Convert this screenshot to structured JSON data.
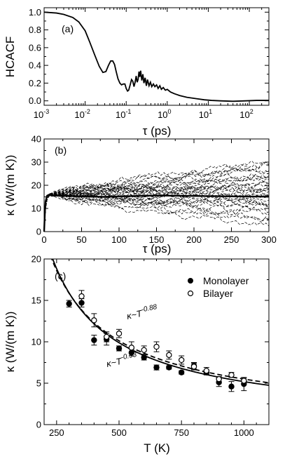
{
  "chart_data": [
    {
      "type": "line",
      "panel_label": "(a)",
      "ylabel": "HCACF",
      "xlabel": "τ (ps)",
      "xscale": "log",
      "xlim": [
        0.001,
        300
      ],
      "ylim": [
        -0.05,
        1.05
      ],
      "yticks": [
        0.0,
        0.2,
        0.4,
        0.6,
        0.8,
        1.0
      ],
      "ytick_labels": [
        "0.0",
        "0.2",
        "0.4",
        "0.6",
        "0.8",
        "1.0"
      ],
      "xticks": [
        0.001,
        0.01,
        0.1,
        1,
        10,
        100
      ],
      "xtick_base": "10",
      "xtick_exponents": [
        "-3",
        "-2",
        "-1",
        "0",
        "1",
        "2"
      ],
      "grid": false,
      "series": [
        {
          "x": [
            0.001,
            0.002,
            0.003,
            0.005,
            0.007,
            0.01,
            0.013,
            0.017,
            0.022,
            0.027,
            0.032,
            0.037,
            0.042,
            0.047,
            0.052,
            0.057,
            0.063,
            0.07,
            0.077,
            0.085,
            0.093,
            0.1,
            0.108,
            0.115,
            0.125,
            0.135,
            0.145,
            0.155,
            0.165,
            0.175,
            0.185,
            0.195,
            0.205,
            0.215,
            0.225,
            0.24,
            0.255,
            0.27,
            0.29,
            0.31,
            0.33,
            0.36,
            0.39,
            0.42,
            0.46,
            0.5,
            0.55,
            0.6,
            0.66,
            0.72,
            0.8,
            0.9,
            1.0,
            1.2,
            1.5,
            2,
            3,
            5,
            8,
            12,
            20,
            40,
            80,
            150,
            300
          ],
          "y": [
            1.0,
            0.99,
            0.975,
            0.94,
            0.89,
            0.79,
            0.66,
            0.52,
            0.39,
            0.32,
            0.33,
            0.4,
            0.45,
            0.45,
            0.41,
            0.33,
            0.25,
            0.2,
            0.18,
            0.19,
            0.19,
            0.14,
            0.11,
            0.12,
            0.18,
            0.24,
            0.22,
            0.16,
            0.21,
            0.28,
            0.21,
            0.24,
            0.33,
            0.27,
            0.34,
            0.23,
            0.3,
            0.2,
            0.26,
            0.17,
            0.24,
            0.17,
            0.21,
            0.16,
            0.19,
            0.16,
            0.18,
            0.14,
            0.17,
            0.13,
            0.15,
            0.12,
            0.13,
            0.1,
            0.08,
            0.06,
            0.04,
            0.025,
            0.012,
            0.005,
            0.0,
            -0.005,
            0.0,
            0.005,
            0.005
          ]
        }
      ]
    },
    {
      "type": "line",
      "panel_label": "(b)",
      "ylabel": "κ (W/(m K))",
      "xlabel": "τ (ps)",
      "xlim": [
        0,
        300
      ],
      "ylim": [
        0,
        40
      ],
      "xticks": [
        0,
        50,
        100,
        150,
        200,
        250,
        300
      ],
      "xtick_labels": [
        "0",
        "50",
        "100",
        "150",
        "200",
        "250",
        "300"
      ],
      "yticks": [
        0,
        10,
        20,
        30,
        40
      ],
      "ytick_labels": [
        "0",
        "10",
        "20",
        "30",
        "40"
      ],
      "grid": false,
      "dashed_runs_endpoints": [
        28,
        22,
        18,
        12,
        26,
        9,
        16,
        20,
        6,
        24,
        14,
        30,
        11,
        19,
        3,
        17,
        25,
        8,
        21,
        13,
        15,
        27,
        10,
        23,
        5,
        29,
        18,
        12,
        16,
        20
      ],
      "average": {
        "x": [
          0,
          1,
          2,
          4,
          7,
          10,
          20,
          40,
          60,
          80,
          100,
          150,
          200,
          250,
          300
        ],
        "y": [
          0,
          8,
          13,
          15.5,
          16,
          15.5,
          15.5,
          15.3,
          15.1,
          15,
          15.2,
          15.6,
          15.4,
          15.2,
          15.1
        ]
      }
    },
    {
      "type": "scatter",
      "panel_label": "(c)",
      "ylabel": "κ (W/(m K))",
      "xlabel": "T (K)",
      "xlim": [
        200,
        1100
      ],
      "ylim": [
        0,
        20
      ],
      "xticks": [
        250,
        500,
        750,
        1000
      ],
      "xtick_labels": [
        "250",
        "500",
        "750",
        "1000"
      ],
      "yticks": [
        0,
        5,
        10,
        15,
        20
      ],
      "ytick_labels": [
        "0",
        "5",
        "10",
        "15",
        "20"
      ],
      "grid": false,
      "legend_position": "top-right",
      "series": [
        {
          "name": "Monolayer",
          "marker": "filled-circle",
          "x": [
            300,
            350,
            400,
            450,
            500,
            550,
            600,
            650,
            700,
            750,
            800,
            850,
            900,
            950,
            1000
          ],
          "y": [
            14.6,
            14.7,
            10.2,
            10.3,
            9.2,
            8.7,
            8.1,
            6.9,
            6.9,
            6.3,
            7.1,
            6.3,
            5.1,
            4.6,
            4.9
          ],
          "err": [
            0.4,
            0.5,
            0.6,
            0.7,
            0.3,
            0.4,
            0.3,
            0.3,
            0.2,
            0.2,
            0.4,
            0.3,
            0.5,
            0.6,
            0.8
          ]
        },
        {
          "name": "Bilayer",
          "marker": "open-circle",
          "x": [
            350,
            400,
            450,
            500,
            550,
            600,
            650,
            700,
            750,
            800,
            850,
            900,
            950,
            1000
          ],
          "y": [
            15.5,
            12.6,
            10.6,
            11.0,
            9.3,
            9.0,
            9.4,
            8.4,
            7.8,
            7.0,
            6.5,
            5.5,
            6.0,
            5.3
          ],
          "err": [
            0.7,
            0.8,
            0.6,
            0.5,
            0.7,
            0.5,
            0.6,
            0.5,
            0.5,
            0.4,
            0.4,
            0.3,
            0.3,
            0.3
          ]
        }
      ],
      "fits": [
        {
          "label_base": "κ~T",
          "exponent": "-0.93",
          "style": "solid",
          "coefficient": 3200,
          "power": -0.93
        },
        {
          "label_base": "κ~T",
          "exponent": "-0.88",
          "style": "dashed",
          "coefficient": 2400,
          "power": -0.88
        }
      ]
    }
  ]
}
